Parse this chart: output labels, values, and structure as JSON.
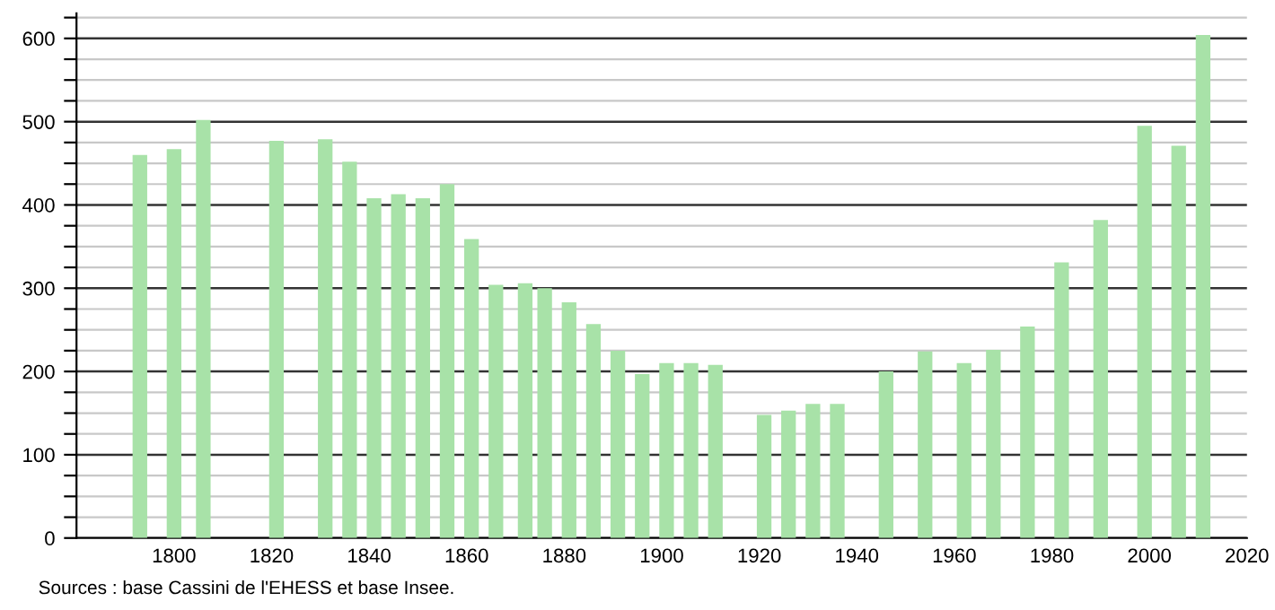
{
  "chart_data": {
    "type": "bar",
    "annotations": [
      "Sources : base Cassini de l'EHESS et base Insee."
    ],
    "x": [
      1793,
      1800,
      1806,
      1821,
      1831,
      1836,
      1841,
      1846,
      1851,
      1856,
      1861,
      1866,
      1872,
      1876,
      1881,
      1886,
      1891,
      1896,
      1901,
      1906,
      1911,
      1921,
      1926,
      1931,
      1936,
      1946,
      1954,
      1962,
      1968,
      1975,
      1982,
      1990,
      1999,
      2006,
      2011
    ],
    "values": [
      460,
      467,
      502,
      477,
      479,
      452,
      408,
      413,
      408,
      425,
      359,
      304,
      306,
      300,
      283,
      257,
      225,
      197,
      210,
      210,
      208,
      148,
      153,
      161,
      161,
      200,
      224,
      210,
      226,
      254,
      331,
      382,
      495,
      471,
      604
    ],
    "color": "#a8e2a8",
    "xlim": [
      1780,
      2020
    ],
    "xticks": [
      1800,
      1820,
      1840,
      1860,
      1880,
      1900,
      1920,
      1940,
      1960,
      1980,
      2000,
      2020
    ],
    "ylim": [
      0,
      630
    ],
    "yticks": [
      0,
      {
        "value": 25,
        "label": null
      },
      {
        "value": 50,
        "label": null
      },
      {
        "value": 75,
        "label": null
      },
      100,
      {
        "value": 125,
        "label": null
      },
      {
        "value": 150,
        "label": null
      },
      {
        "value": 175,
        "label": null
      },
      200,
      {
        "value": 225,
        "label": null
      },
      {
        "value": 250,
        "label": null
      },
      {
        "value": 275,
        "label": null
      },
      300,
      {
        "value": 325,
        "label": null
      },
      {
        "value": 350,
        "label": null
      },
      {
        "value": 375,
        "label": null
      },
      400,
      {
        "value": 425,
        "label": null
      },
      {
        "value": 450,
        "label": null
      },
      {
        "value": 475,
        "label": null
      },
      500,
      {
        "value": 525,
        "label": null
      },
      {
        "value": 550,
        "label": null
      },
      {
        "value": 575,
        "label": null
      },
      600,
      {
        "value": 625,
        "label": null
      }
    ],
    "grid": "y"
  }
}
